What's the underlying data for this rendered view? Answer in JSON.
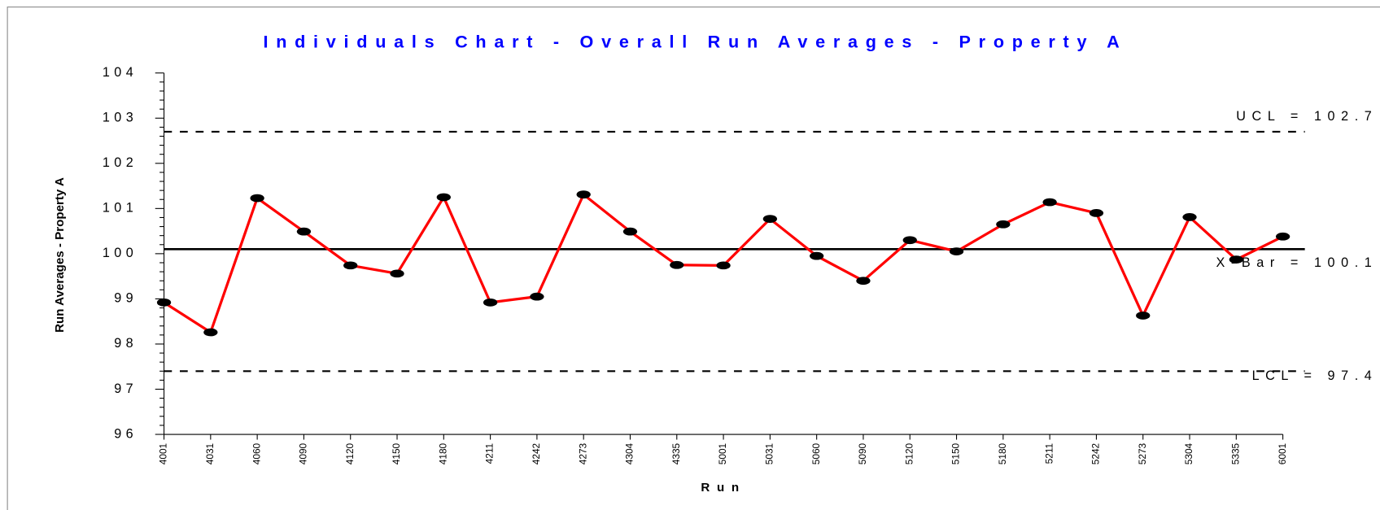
{
  "chart_data": {
    "type": "line",
    "title": "Individuals Chart - Overall Run Averages - Property A",
    "x_label": "Run",
    "y_label": "Run Averages - Property A",
    "categories": [
      "4001",
      "4031",
      "4060",
      "4090",
      "4120",
      "4150",
      "4180",
      "4211",
      "4242",
      "4273",
      "4304",
      "4335",
      "5001",
      "5031",
      "5060",
      "5090",
      "5120",
      "5150",
      "5180",
      "5211",
      "5242",
      "5273",
      "5304",
      "5335",
      "6001"
    ],
    "values": [
      98.92,
      98.26,
      101.23,
      100.49,
      99.74,
      99.56,
      101.25,
      98.92,
      99.05,
      101.31,
      100.49,
      99.75,
      99.74,
      100.77,
      99.95,
      99.4,
      100.3,
      100.05,
      100.65,
      101.14,
      100.9,
      98.63,
      100.81,
      99.87,
      100.38
    ],
    "color": "#ff0000",
    "marker_color": "#000000",
    "ylim": [
      96,
      104
    ],
    "yticks": [
      96,
      97,
      98,
      99,
      100,
      101,
      102,
      103,
      104
    ],
    "control_lines": [
      {
        "label": "UCL = 102.7",
        "value": 102.7,
        "style": "dashed"
      },
      {
        "label": "X-Bar = 100.1",
        "value": 100.1,
        "style": "solid"
      },
      {
        "label": "LCL = 97.4",
        "value": 97.4,
        "style": "dashed"
      }
    ]
  }
}
